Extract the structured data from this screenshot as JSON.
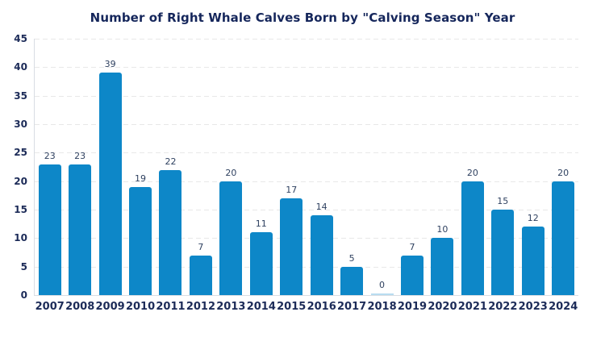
{
  "chart_data": {
    "type": "bar",
    "title": "Number of Right Whale Calves Born by \"Calving Season\" Year",
    "xlabel": "",
    "ylabel": "",
    "categories": [
      "2007",
      "2008",
      "2009",
      "2010",
      "2011",
      "2012",
      "2013",
      "2014",
      "2015",
      "2016",
      "2017",
      "2018",
      "2019",
      "2020",
      "2021",
      "2022",
      "2023",
      "2024"
    ],
    "values": [
      23,
      23,
      39,
      19,
      22,
      7,
      20,
      11,
      17,
      14,
      5,
      0,
      7,
      10,
      20,
      15,
      12,
      20
    ],
    "ylim": [
      0,
      45
    ],
    "ytick_step": 5,
    "grid": "horizontal-dashed",
    "legend_position": "none",
    "colors": {
      "bar": "#0d87c8",
      "zero_bar": "#b8dcf0",
      "title_text": "#15265b",
      "axis_tick_text": "#1c2b58",
      "value_label_text": "#2f4160",
      "gridline": "#e8e8e8",
      "axis_line": "#d9dde3"
    }
  }
}
